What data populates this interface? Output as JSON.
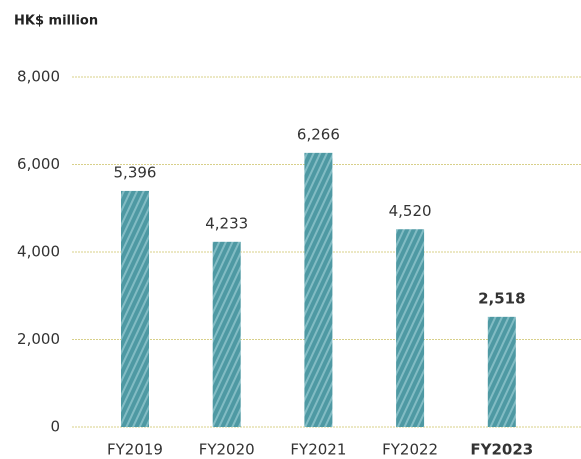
{
  "chart_data": {
    "type": "bar",
    "y_axis_label": "HK$ million",
    "categories": [
      "FY2019",
      "FY2020",
      "FY2021",
      "FY2022",
      "FY2023"
    ],
    "values": [
      5396,
      4233,
      6266,
      4520,
      2518
    ],
    "value_labels": [
      "5,396",
      "4,233",
      "6,266",
      "4,520",
      "2,518"
    ],
    "color": "#4e99a3",
    "highlight_index": 4,
    "ylim": [
      0,
      8000
    ],
    "yticks": [
      0,
      {
        "value": 2000,
        "label": "2,000"
      },
      {
        "value": 4000,
        "label": "4,000"
      },
      {
        "value": 6000,
        "label": "6,000"
      },
      {
        "value": 8000,
        "label": "8,000"
      }
    ],
    "grid": true
  }
}
